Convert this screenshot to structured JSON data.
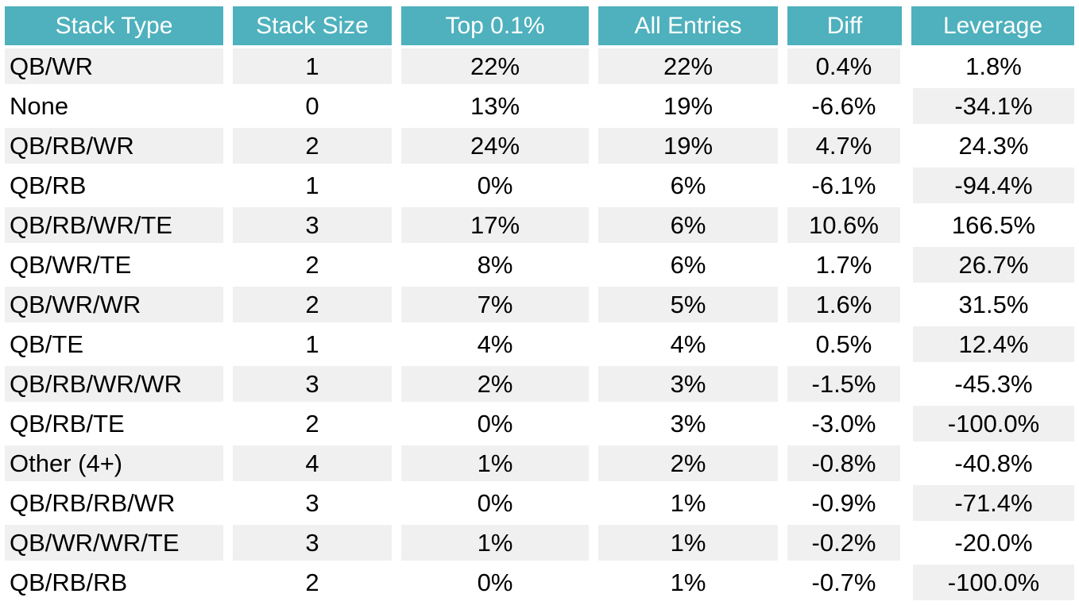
{
  "chart_data": {
    "type": "table",
    "columns": [
      "Stack Type",
      "Stack Size",
      "Top 0.1%",
      "All Entries",
      "Diff",
      "Leverage"
    ],
    "rows": [
      [
        "QB/WR",
        "1",
        "22%",
        "22%",
        "0.4%",
        "1.8%"
      ],
      [
        "None",
        "0",
        "13%",
        "19%",
        "-6.6%",
        "-34.1%"
      ],
      [
        "QB/RB/WR",
        "2",
        "24%",
        "19%",
        "4.7%",
        "24.3%"
      ],
      [
        "QB/RB",
        "1",
        "0%",
        "6%",
        "-6.1%",
        "-94.4%"
      ],
      [
        "QB/RB/WR/TE",
        "3",
        "17%",
        "6%",
        "10.6%",
        "166.5%"
      ],
      [
        "QB/WR/TE",
        "2",
        "8%",
        "6%",
        "1.7%",
        "26.7%"
      ],
      [
        "QB/WR/WR",
        "2",
        "7%",
        "5%",
        "1.6%",
        "31.5%"
      ],
      [
        "QB/TE",
        "1",
        "4%",
        "4%",
        "0.5%",
        "12.4%"
      ],
      [
        "QB/RB/WR/WR",
        "3",
        "2%",
        "3%",
        "-1.5%",
        "-45.3%"
      ],
      [
        "QB/RB/TE",
        "2",
        "0%",
        "3%",
        "-3.0%",
        "-100.0%"
      ],
      [
        "Other (4+)",
        "4",
        "1%",
        "2%",
        "-0.8%",
        "-40.8%"
      ],
      [
        "QB/RB/RB/WR",
        "3",
        "0%",
        "1%",
        "-0.9%",
        "-71.4%"
      ],
      [
        "QB/WR/WR/TE",
        "3",
        "1%",
        "1%",
        "-0.2%",
        "-20.0%"
      ],
      [
        "QB/RB/RB",
        "2",
        "0%",
        "1%",
        "-0.7%",
        "-100.0%"
      ]
    ],
    "layout": {
      "stripe_pattern": "alternating rows, leverage column inverted",
      "header_alignment": "center",
      "first_column_alignment": "left",
      "other_columns_alignment": "center"
    }
  },
  "colors": {
    "header_bg": "#4eb1bd",
    "header_text": "#ffffff",
    "row_stripe": "#f0f0f0",
    "row_bg": "#ffffff",
    "cell_text": "#000000"
  }
}
